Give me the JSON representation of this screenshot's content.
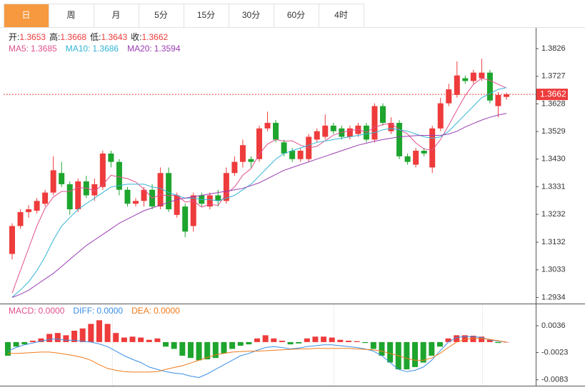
{
  "tabs": [
    "日",
    "周",
    "月",
    "5分",
    "15分",
    "30分",
    "60分",
    "4时"
  ],
  "active_tab": 0,
  "chart_data": [
    {
      "type": "candlestick",
      "ohlc_legend": [
        {
          "label": "开:",
          "value": "1.3653"
        },
        {
          "label": "高:",
          "value": "1.3668"
        },
        {
          "label": "低:",
          "value": "1.3643"
        },
        {
          "label": "收:",
          "value": "1.3662"
        }
      ],
      "up_color": "#ee3b3b",
      "down_color": "#1ea52e",
      "open": [
        1.309,
        1.319,
        1.324,
        1.3245,
        1.327,
        1.331,
        1.338,
        1.334,
        1.325,
        1.335,
        1.33,
        1.333,
        1.345,
        1.342,
        1.332,
        1.327,
        1.328,
        1.332,
        1.326,
        1.338,
        1.323,
        1.326,
        1.319,
        1.33,
        1.326,
        1.33,
        1.328,
        1.338,
        1.342,
        1.343,
        1.343,
        1.354,
        1.356,
        1.349,
        1.346,
        1.343,
        1.343,
        1.35,
        1.351,
        1.355,
        1.354,
        1.351,
        1.352,
        1.355,
        1.35,
        1.362,
        1.353,
        1.356,
        1.344,
        1.341,
        1.346,
        1.34,
        1.354,
        1.363,
        1.366,
        1.372,
        1.371,
        1.372,
        1.374,
        1.362,
        1.3653
      ],
      "high": [
        1.32,
        1.325,
        1.3265,
        1.329,
        1.332,
        1.344,
        1.342,
        1.335,
        1.336,
        1.337,
        1.336,
        1.346,
        1.346,
        1.343,
        1.333,
        1.329,
        1.333,
        1.334,
        1.34,
        1.34,
        1.331,
        1.327,
        1.331,
        1.331,
        1.331,
        1.332,
        1.34,
        1.344,
        1.35,
        1.344,
        1.355,
        1.36,
        1.357,
        1.35,
        1.347,
        1.347,
        1.352,
        1.354,
        1.359,
        1.356,
        1.355,
        1.355,
        1.356,
        1.356,
        1.363,
        1.363,
        1.358,
        1.357,
        1.345,
        1.347,
        1.347,
        1.355,
        1.365,
        1.37,
        1.378,
        1.373,
        1.375,
        1.379,
        1.375,
        1.367,
        1.3668
      ],
      "low": [
        1.307,
        1.318,
        1.322,
        1.3235,
        1.326,
        1.33,
        1.333,
        1.323,
        1.324,
        1.329,
        1.328,
        1.332,
        1.34,
        1.33,
        1.326,
        1.326,
        1.326,
        1.325,
        1.325,
        1.324,
        1.322,
        1.315,
        1.317,
        1.326,
        1.325,
        1.326,
        1.327,
        1.337,
        1.34,
        1.34,
        1.342,
        1.353,
        1.349,
        1.344,
        1.342,
        1.342,
        1.342,
        1.349,
        1.35,
        1.352,
        1.35,
        1.35,
        1.351,
        1.349,
        1.349,
        1.355,
        1.352,
        1.343,
        1.341,
        1.34,
        1.344,
        1.338,
        1.353,
        1.362,
        1.365,
        1.37,
        1.37,
        1.371,
        1.363,
        1.358,
        1.3643
      ],
      "close": [
        1.319,
        1.324,
        1.325,
        1.328,
        1.331,
        1.339,
        1.334,
        1.325,
        1.335,
        1.33,
        1.334,
        1.345,
        1.342,
        1.332,
        1.327,
        1.328,
        1.332,
        1.326,
        1.338,
        1.325,
        1.33,
        1.317,
        1.33,
        1.327,
        1.33,
        1.328,
        1.338,
        1.342,
        1.348,
        1.342,
        1.354,
        1.356,
        1.35,
        1.345,
        1.343,
        1.346,
        1.351,
        1.353,
        1.355,
        1.353,
        1.351,
        1.354,
        1.355,
        1.35,
        1.362,
        1.356,
        1.356,
        1.344,
        1.342,
        1.346,
        1.345,
        1.354,
        1.363,
        1.368,
        1.373,
        1.371,
        1.374,
        1.374,
        1.364,
        1.366,
        1.3662
      ],
      "series": [
        {
          "name": "MA5:",
          "value_label": "1.3685",
          "color": "#e0508f",
          "values": [
            1.295,
            1.303,
            1.311,
            1.319,
            1.3254,
            1.3294,
            1.3314,
            1.3314,
            1.3328,
            1.3326,
            1.3316,
            1.3338,
            1.3372,
            1.3366,
            1.336,
            1.3348,
            1.3322,
            1.329,
            1.3302,
            1.3298,
            1.3302,
            1.3276,
            1.328,
            1.3258,
            1.3268,
            1.3264,
            1.3306,
            1.333,
            1.3372,
            1.3396,
            1.3448,
            1.3484,
            1.35,
            1.3494,
            1.3496,
            1.348,
            1.347,
            1.3476,
            1.3496,
            1.3516,
            1.3526,
            1.3532,
            1.3536,
            1.3526,
            1.3544,
            1.3554,
            1.3558,
            1.3536,
            1.352,
            1.3488,
            1.3466,
            1.3462,
            1.35,
            1.3552,
            1.3606,
            1.3658,
            1.3698,
            1.372,
            1.3712,
            1.3698,
            1.3685
          ]
        },
        {
          "name": "MA10:",
          "value_label": "1.3686",
          "color": "#33b5d6",
          "values": [
            1.2935,
            1.296,
            1.299,
            1.303,
            1.308,
            1.314,
            1.319,
            1.322,
            1.325,
            1.327,
            1.329,
            1.331,
            1.333,
            1.3335,
            1.334,
            1.334,
            1.334,
            1.333,
            1.3325,
            1.331,
            1.33,
            1.329,
            1.329,
            1.3285,
            1.3285,
            1.328,
            1.329,
            1.33,
            1.332,
            1.334,
            1.337,
            1.34,
            1.343,
            1.345,
            1.346,
            1.347,
            1.348,
            1.349,
            1.3495,
            1.35,
            1.3505,
            1.351,
            1.3515,
            1.352,
            1.3525,
            1.3535,
            1.354,
            1.3535,
            1.353,
            1.352,
            1.351,
            1.3505,
            1.351,
            1.353,
            1.356,
            1.359,
            1.362,
            1.365,
            1.3665,
            1.368,
            1.3686
          ]
        },
        {
          "name": "MA20:",
          "value_label": "1.3594",
          "color": "#9a3db3",
          "values": [
            1.2934,
            1.2945,
            1.296,
            1.298,
            1.3,
            1.302,
            1.3045,
            1.307,
            1.3095,
            1.312,
            1.314,
            1.316,
            1.318,
            1.32,
            1.3215,
            1.323,
            1.3245,
            1.3255,
            1.3265,
            1.3275,
            1.3285,
            1.329,
            1.3295,
            1.33,
            1.3305,
            1.331,
            1.3315,
            1.332,
            1.3325,
            1.3335,
            1.3345,
            1.336,
            1.3375,
            1.339,
            1.34,
            1.341,
            1.342,
            1.343,
            1.344,
            1.345,
            1.346,
            1.347,
            1.348,
            1.3487,
            1.3494,
            1.35,
            1.3505,
            1.351,
            1.3512,
            1.3514,
            1.3515,
            1.3515,
            1.3515,
            1.352,
            1.353,
            1.3545,
            1.3558,
            1.357,
            1.358,
            1.3588,
            1.3594
          ]
        }
      ],
      "last_price": {
        "value": 1.3662,
        "label": "1.3662"
      },
      "ylim": [
        1.2912,
        1.3898
      ],
      "yticks": [
        1.3826,
        1.3727,
        1.3628,
        1.3529,
        {
          "value": 1.343,
          "label": "1.3430"
        },
        1.3331,
        1.3232,
        1.3132,
        1.3033,
        1.2934
      ]
    },
    {
      "type": "macd",
      "up_color": "#ee3b3b",
      "down_color": "#1ea52e",
      "series": [
        {
          "name": "MACD:",
          "value_label": "0.0000",
          "color": "#e0508f",
          "kind": "bar",
          "values": [
            -0.003,
            -0.001,
            -0.0005,
            0.0003,
            0.0008,
            0.0018,
            0.002,
            0.0015,
            0.0025,
            0.003,
            0.004,
            0.0048,
            0.004,
            0.002,
            0.001,
            0.0012,
            0.001,
            0.0005,
            0.0008,
            -0.001,
            -0.0015,
            -0.003,
            -0.0035,
            -0.004,
            -0.0038,
            -0.0035,
            -0.0025,
            -0.0015,
            -0.0008,
            -0.0005,
            0.0008,
            0.0015,
            0.0008,
            0.0003,
            -0.0005,
            -0.0003,
            0.0008,
            0.0012,
            0.0012,
            0.001,
            0.0005,
            0.0003,
            0.0002,
            -0.0002,
            -0.0015,
            -0.003,
            -0.0045,
            -0.006,
            -0.006,
            -0.0055,
            -0.0045,
            -0.003,
            -0.001,
            0.0008,
            0.0015,
            0.0015,
            0.0014,
            0.0012,
            0.0005,
            -0.0002,
            0
          ]
        },
        {
          "name": "DIFF:",
          "value_label": "0.0000",
          "color": "#3a8ee6",
          "kind": "line",
          "values": [
            -0.002,
            -0.0012,
            -0.0006,
            -0.0002,
            0.0002,
            0.0006,
            0.0007,
            0.0004,
            0.0004,
            0.0002,
            0,
            -0.0004,
            -0.001,
            -0.002,
            -0.003,
            -0.0038,
            -0.0045,
            -0.0055,
            -0.006,
            -0.0065,
            -0.0068,
            -0.007,
            -0.0075,
            -0.0078,
            -0.007,
            -0.006,
            -0.005,
            -0.004,
            -0.003,
            -0.0025,
            -0.0018,
            -0.0012,
            -0.001,
            -0.0012,
            -0.0015,
            -0.0013,
            -0.001,
            -0.0008,
            -0.0006,
            -0.0006,
            -0.0008,
            -0.001,
            -0.0012,
            -0.0015,
            -0.002,
            -0.003,
            -0.0045,
            -0.006,
            -0.0065,
            -0.0062,
            -0.0055,
            -0.004,
            -0.002,
            0,
            0.001,
            0.0012,
            0.0012,
            0.001,
            0.0005,
            0.0002,
            0
          ]
        },
        {
          "name": "DEA:",
          "value_label": "0.0000",
          "color": "#f07b1c",
          "kind": "line",
          "values": [
            -0.0025,
            -0.0025,
            -0.0024,
            -0.0023,
            -0.0022,
            -0.0022,
            -0.0024,
            -0.0027,
            -0.003,
            -0.0034,
            -0.004,
            -0.005,
            -0.0058,
            -0.0062,
            -0.0065,
            -0.0066,
            -0.0066,
            -0.0066,
            -0.0065,
            -0.006,
            -0.0056,
            -0.0052,
            -0.0046,
            -0.004,
            -0.0034,
            -0.0028,
            -0.0025,
            -0.0022,
            -0.0021,
            -0.002,
            -0.002,
            -0.0019,
            -0.0018,
            -0.0017,
            -0.0016,
            -0.0015,
            -0.0015,
            -0.0014,
            -0.0014,
            -0.0014,
            -0.0014,
            -0.0014,
            -0.0015,
            -0.0016,
            -0.0017,
            -0.002,
            -0.0025,
            -0.003,
            -0.0036,
            -0.004,
            -0.004,
            -0.0035,
            -0.0025,
            -0.0012,
            0,
            0.0006,
            0.0008,
            0.0008,
            0.0006,
            0.0003,
            0
          ]
        }
      ],
      "ylim": [
        -0.0096,
        0.008
      ],
      "yticks": [
        0.0036,
        -0.0023,
        -0.0083
      ]
    }
  ]
}
